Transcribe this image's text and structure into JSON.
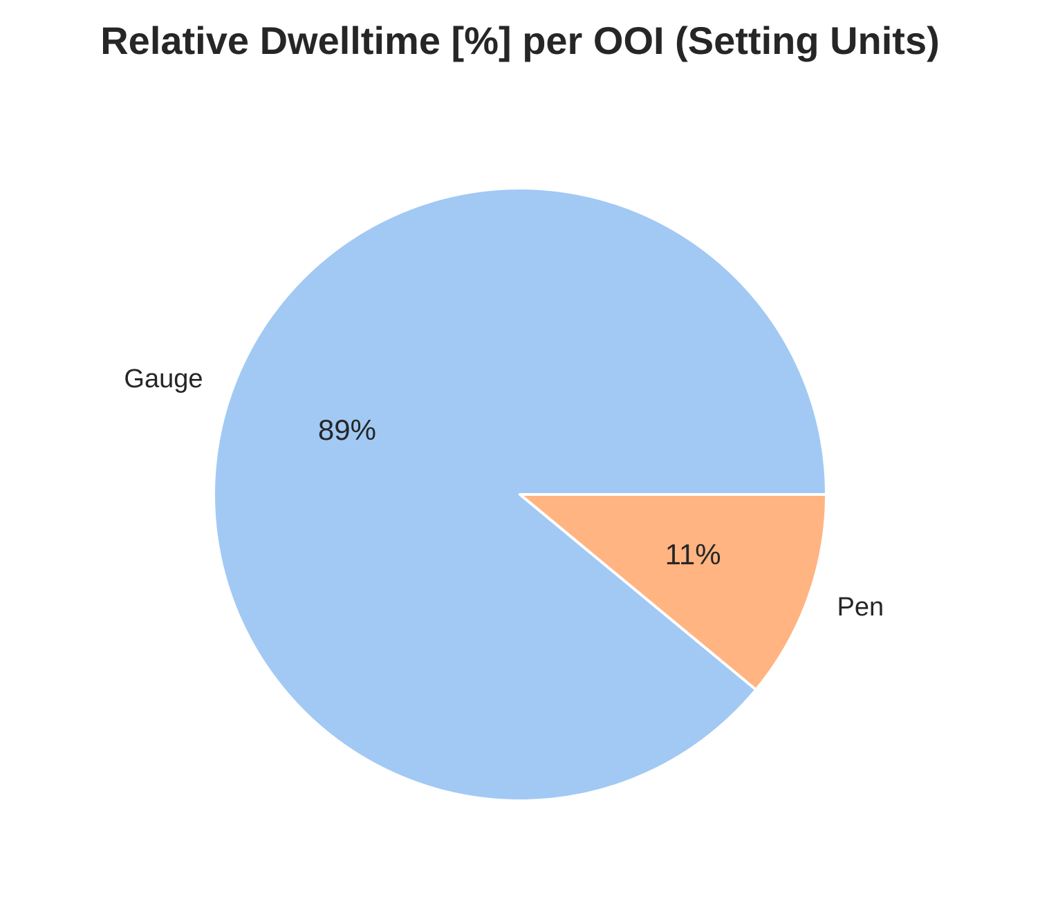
{
  "chart_data": {
    "type": "pie",
    "title": "Relative Dwelltime [%] per OOI (Setting Units)",
    "slices": [
      {
        "label": "Gauge",
        "value": 89,
        "pct_label": "89%",
        "color": "#a1c9f4"
      },
      {
        "label": "Pen",
        "value": 11,
        "pct_label": "11%",
        "color": "#ffb482"
      }
    ],
    "start_angle_deg": 0,
    "direction": "counterclockwise",
    "edge_color": "#ffffff"
  }
}
